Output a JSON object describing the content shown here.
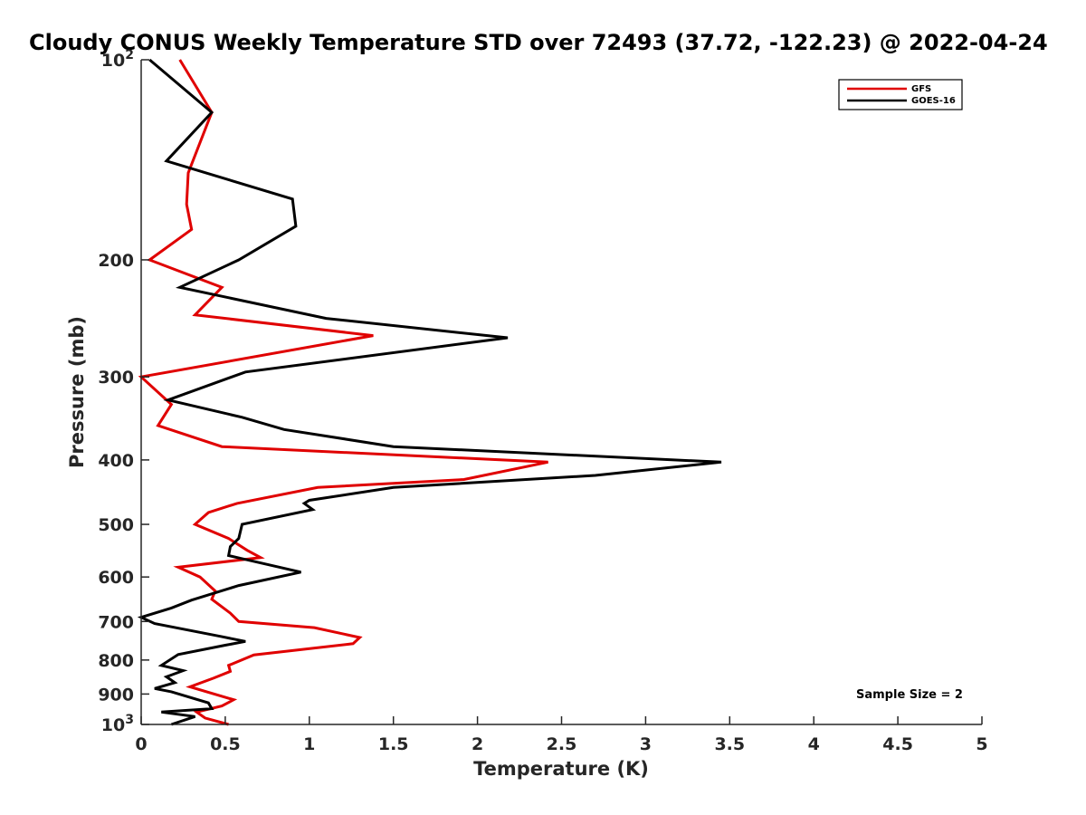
{
  "chart_data": {
    "type": "line",
    "title": "Cloudy CONUS Weekly Temperature STD over 72493 (37.72, -122.23) @ 2022-04-24",
    "xlabel": "Temperature (K)",
    "ylabel": "Pressure (mb)",
    "xlim": [
      0,
      5
    ],
    "ylim": [
      100,
      1000
    ],
    "yscale": "log",
    "y_reversed": true,
    "x_ticks": [
      0,
      0.5,
      1,
      1.5,
      2,
      2.5,
      3,
      3.5,
      4,
      4.5,
      5
    ],
    "x_tick_labels": [
      "0",
      "0.5",
      "1",
      "1.5",
      "2",
      "2.5",
      "3",
      "3.5",
      "4",
      "4.5",
      "5"
    ],
    "y_ticks": [
      100,
      200,
      300,
      400,
      500,
      600,
      700,
      800,
      900,
      1000
    ],
    "y_tick_labels": [
      "10^2",
      "200",
      "300",
      "400",
      "500",
      "600",
      "700",
      "800",
      "900",
      "10^3"
    ],
    "legend": {
      "placement": "top-right",
      "entries": [
        "GFS",
        "GOES-16"
      ]
    },
    "grid": false,
    "annotation": "Sample Size = 2",
    "series": [
      {
        "name": "GFS",
        "color": "#e00000",
        "points": [
          [
            0.23,
            100
          ],
          [
            0.42,
            120
          ],
          [
            0.28,
            148
          ],
          [
            0.27,
            165
          ],
          [
            0.3,
            180
          ],
          [
            0.05,
            200
          ],
          [
            0.48,
            220
          ],
          [
            0.32,
            242
          ],
          [
            1.38,
            260
          ],
          [
            0.0,
            300
          ],
          [
            0.18,
            330
          ],
          [
            0.1,
            355
          ],
          [
            0.48,
            382
          ],
          [
            2.42,
            403
          ],
          [
            1.92,
            428
          ],
          [
            1.05,
            440
          ],
          [
            0.57,
            465
          ],
          [
            0.4,
            480
          ],
          [
            0.32,
            500
          ],
          [
            0.52,
            525
          ],
          [
            0.63,
            547
          ],
          [
            0.71,
            561
          ],
          [
            0.22,
            580
          ],
          [
            0.35,
            600
          ],
          [
            0.44,
            630
          ],
          [
            0.42,
            648
          ],
          [
            0.53,
            680
          ],
          [
            0.58,
            700
          ],
          [
            1.03,
            715
          ],
          [
            1.3,
            740
          ],
          [
            1.26,
            756
          ],
          [
            0.67,
            786
          ],
          [
            0.52,
            815
          ],
          [
            0.53,
            832
          ],
          [
            0.43,
            852
          ],
          [
            0.29,
            878
          ],
          [
            0.55,
            918
          ],
          [
            0.48,
            938
          ],
          [
            0.33,
            958
          ],
          [
            0.38,
            978
          ],
          [
            0.52,
            1000
          ]
        ]
      },
      {
        "name": "GOES-16",
        "color": "#000000",
        "points": [
          [
            0.05,
            100
          ],
          [
            0.42,
            120
          ],
          [
            0.15,
            142
          ],
          [
            0.9,
            162
          ],
          [
            0.92,
            178
          ],
          [
            0.58,
            200
          ],
          [
            0.23,
            220
          ],
          [
            1.1,
            245
          ],
          [
            2.18,
            262
          ],
          [
            0.62,
            295
          ],
          [
            0.16,
            325
          ],
          [
            0.6,
            345
          ],
          [
            0.85,
            360
          ],
          [
            1.5,
            382
          ],
          [
            3.45,
            403
          ],
          [
            2.7,
            422
          ],
          [
            1.5,
            440
          ],
          [
            1.0,
            460
          ],
          [
            0.97,
            465
          ],
          [
            1.02,
            475
          ],
          [
            0.6,
            500
          ],
          [
            0.58,
            525
          ],
          [
            0.53,
            540
          ],
          [
            0.52,
            557
          ],
          [
            0.6,
            563
          ],
          [
            0.95,
            590
          ],
          [
            0.58,
            618
          ],
          [
            0.3,
            650
          ],
          [
            0.18,
            668
          ],
          [
            0.0,
            690
          ],
          [
            0.08,
            705
          ],
          [
            0.47,
            737
          ],
          [
            0.62,
            750
          ],
          [
            0.5,
            760
          ],
          [
            0.22,
            785
          ],
          [
            0.12,
            815
          ],
          [
            0.25,
            830
          ],
          [
            0.15,
            848
          ],
          [
            0.2,
            865
          ],
          [
            0.08,
            883
          ],
          [
            0.18,
            893
          ],
          [
            0.4,
            928
          ],
          [
            0.42,
            947
          ],
          [
            0.12,
            958
          ],
          [
            0.32,
            973
          ],
          [
            0.18,
            1000
          ]
        ]
      }
    ]
  }
}
